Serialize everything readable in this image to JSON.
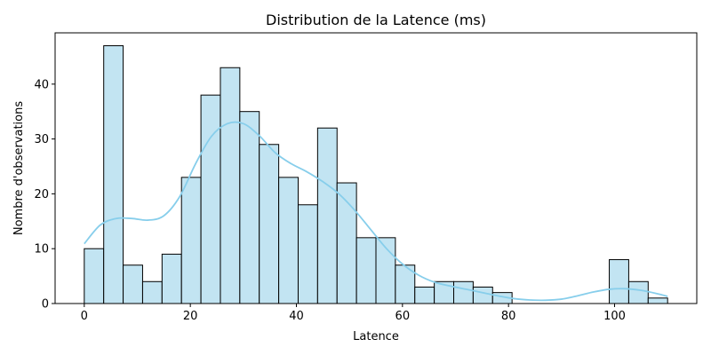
{
  "chart_data": {
    "type": "bar",
    "subtype": "histogram",
    "title": "Distribution de la Latence (ms)",
    "xlabel": "Latence",
    "ylabel": "Nombre d'observations",
    "xlim": [
      -5.5,
      115.5
    ],
    "ylim": [
      0,
      49.35
    ],
    "x_ticks": [
      0,
      20,
      40,
      60,
      80,
      100
    ],
    "y_ticks": [
      0,
      10,
      20,
      30,
      40
    ],
    "grid": false,
    "legend": "none",
    "bin_width": 3.667,
    "bins": [
      {
        "x0": 0.0,
        "x1": 3.667,
        "count": 10
      },
      {
        "x0": 3.667,
        "x1": 7.333,
        "count": 47
      },
      {
        "x0": 7.333,
        "x1": 11.0,
        "count": 7
      },
      {
        "x0": 11.0,
        "x1": 14.667,
        "count": 4
      },
      {
        "x0": 14.667,
        "x1": 18.333,
        "count": 9
      },
      {
        "x0": 18.333,
        "x1": 22.0,
        "count": 23
      },
      {
        "x0": 22.0,
        "x1": 25.667,
        "count": 38
      },
      {
        "x0": 25.667,
        "x1": 29.333,
        "count": 43
      },
      {
        "x0": 29.333,
        "x1": 33.0,
        "count": 35
      },
      {
        "x0": 33.0,
        "x1": 36.667,
        "count": 29
      },
      {
        "x0": 36.667,
        "x1": 40.333,
        "count": 23
      },
      {
        "x0": 40.333,
        "x1": 44.0,
        "count": 18
      },
      {
        "x0": 44.0,
        "x1": 47.667,
        "count": 32
      },
      {
        "x0": 47.667,
        "x1": 51.333,
        "count": 22
      },
      {
        "x0": 51.333,
        "x1": 55.0,
        "count": 12
      },
      {
        "x0": 55.0,
        "x1": 58.667,
        "count": 12
      },
      {
        "x0": 58.667,
        "x1": 62.333,
        "count": 7
      },
      {
        "x0": 62.333,
        "x1": 66.0,
        "count": 3
      },
      {
        "x0": 66.0,
        "x1": 69.667,
        "count": 4
      },
      {
        "x0": 69.667,
        "x1": 73.333,
        "count": 4
      },
      {
        "x0": 73.333,
        "x1": 77.0,
        "count": 3
      },
      {
        "x0": 77.0,
        "x1": 80.667,
        "count": 2
      },
      {
        "x0": 80.667,
        "x1": 84.333,
        "count": 0
      },
      {
        "x0": 84.333,
        "x1": 88.0,
        "count": 0
      },
      {
        "x0": 88.0,
        "x1": 91.667,
        "count": 0
      },
      {
        "x0": 91.667,
        "x1": 95.333,
        "count": 0
      },
      {
        "x0": 95.333,
        "x1": 99.0,
        "count": 0
      },
      {
        "x0": 99.0,
        "x1": 102.667,
        "count": 8
      },
      {
        "x0": 102.667,
        "x1": 106.333,
        "count": 4
      },
      {
        "x0": 106.333,
        "x1": 110.0,
        "count": 1
      }
    ],
    "kde": {
      "x": [
        0,
        3,
        6,
        9,
        12,
        15,
        18,
        21,
        24,
        27,
        30,
        33,
        36,
        39,
        42,
        45,
        48,
        51,
        54,
        57,
        60,
        63,
        66,
        69,
        72,
        75,
        78,
        81,
        84,
        87,
        90,
        93,
        96,
        99,
        102,
        105,
        108,
        110
      ],
      "y": [
        10.9,
        14.3,
        15.5,
        15.5,
        15.2,
        16.0,
        19.5,
        25.5,
        30.5,
        32.8,
        32.8,
        30.6,
        27.5,
        25.5,
        24.0,
        22.2,
        20.0,
        17.0,
        13.5,
        10.0,
        7.2,
        5.2,
        3.9,
        3.2,
        2.6,
        2.0,
        1.4,
        0.9,
        0.65,
        0.6,
        0.8,
        1.4,
        2.1,
        2.6,
        2.7,
        2.4,
        1.8,
        1.3
      ]
    },
    "colors": {
      "bar_fill": "#c2e4f2",
      "bar_edge": "#000000",
      "kde_line": "#87ceeb",
      "axis": "#000000"
    }
  }
}
